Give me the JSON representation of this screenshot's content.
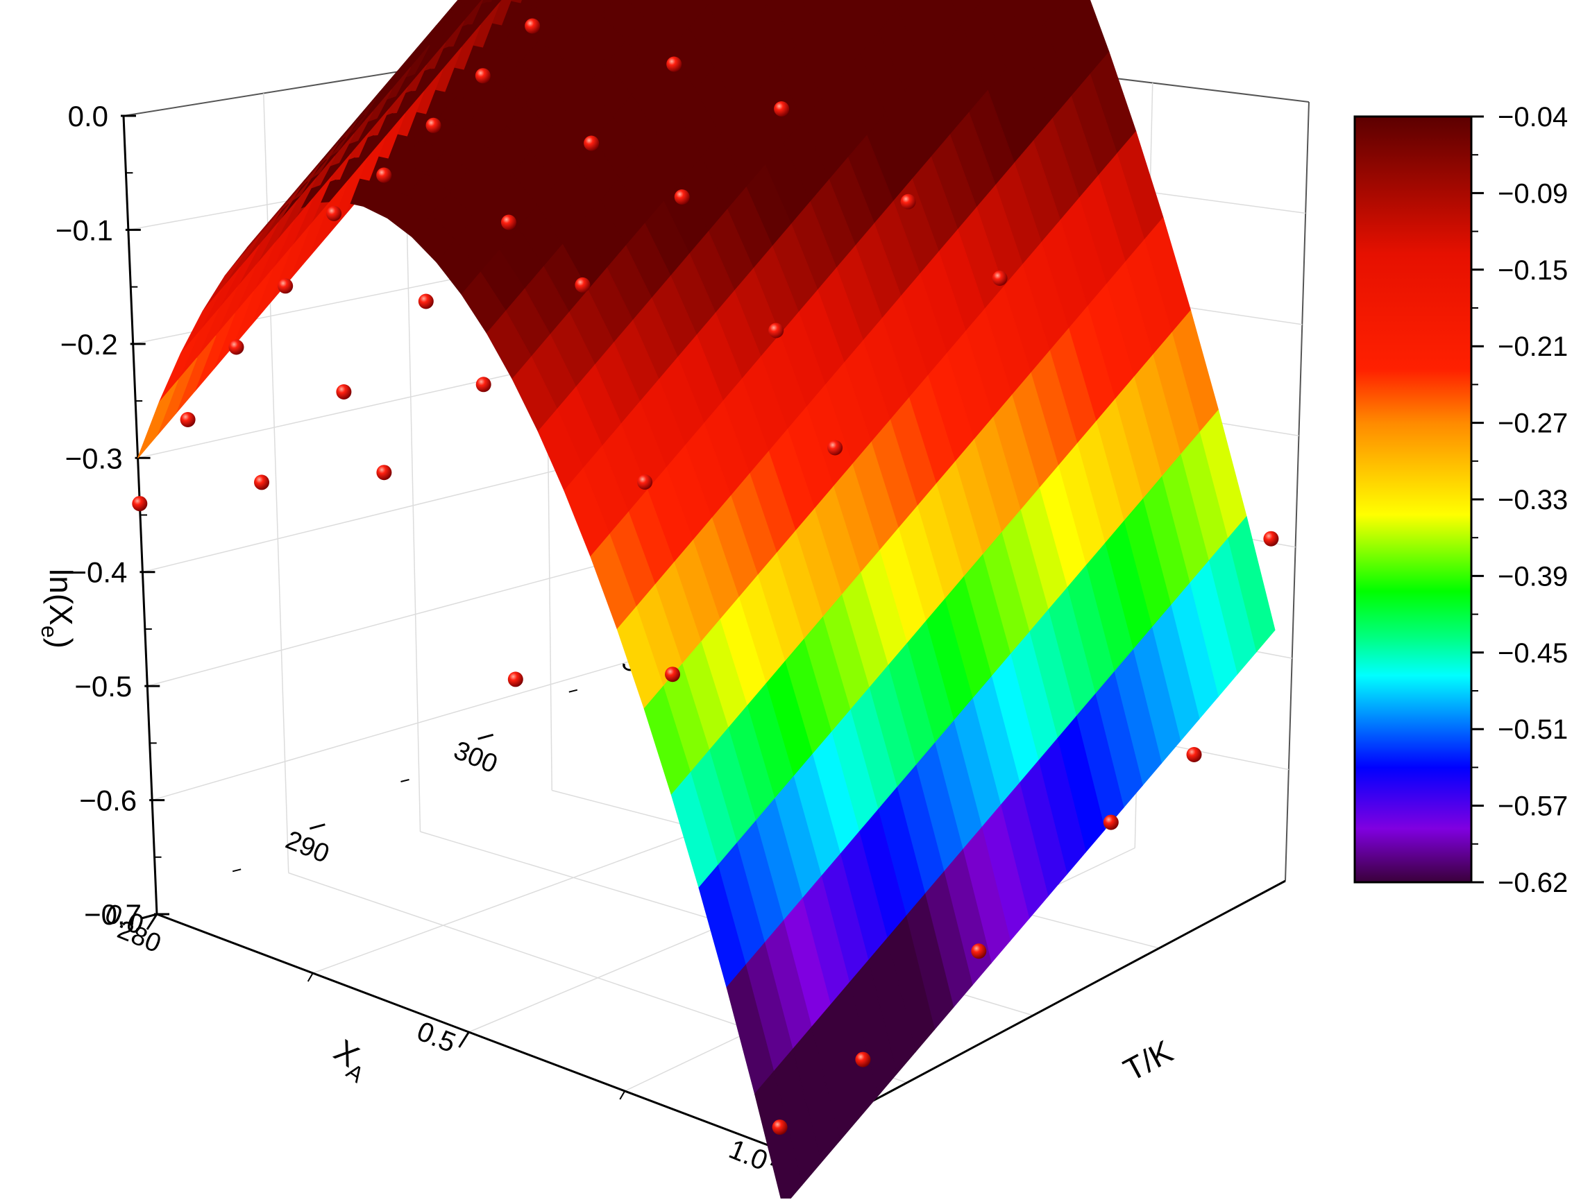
{
  "chart_data": {
    "type": "surface3d",
    "title": "",
    "zlabel": {
      "main": "ln(X",
      "sub": "e",
      "close": ")"
    },
    "xlabel": {
      "main": "X",
      "sub": "A"
    },
    "ylabel": "T/K",
    "zlim": [
      -0.7,
      0.0
    ],
    "z_ticks": [
      "0.0",
      "-0.1",
      "-0.2",
      "-0.3",
      "-0.4",
      "-0.5",
      "-0.6",
      "-0.7"
    ],
    "x_ticks": [
      "0.0",
      "0.5",
      "1.0"
    ],
    "y_ticks": [
      "280",
      "290",
      "300",
      "310"
    ],
    "colorbar": {
      "labels": [
        "-0.04",
        "-0.09",
        "-0.15",
        "-0.21",
        "-0.27",
        "-0.33",
        "-0.39",
        "-0.45",
        "-0.51",
        "-0.57",
        "-0.62"
      ],
      "range": [
        -0.62,
        -0.04
      ]
    },
    "grid": true,
    "points": [
      {
        "xA": 0.0,
        "T": 280,
        "z": -0.34
      },
      {
        "xA": 0.0,
        "T": 283,
        "z": -0.29
      },
      {
        "xA": 0.0,
        "T": 286,
        "z": -0.25
      },
      {
        "xA": 0.0,
        "T": 289,
        "z": -0.22
      },
      {
        "xA": 0.0,
        "T": 292,
        "z": -0.18
      },
      {
        "xA": 0.0,
        "T": 295,
        "z": -0.17
      },
      {
        "xA": 0.0,
        "T": 298,
        "z": -0.15
      },
      {
        "xA": 0.0,
        "T": 301,
        "z": -0.13
      },
      {
        "xA": 0.0,
        "T": 304,
        "z": -0.11
      },
      {
        "xA": 0.0,
        "T": 307,
        "z": -0.09
      },
      {
        "xA": 0.0,
        "T": 310,
        "z": -0.07
      },
      {
        "xA": 0.2,
        "T": 280,
        "z": -0.28
      },
      {
        "xA": 0.2,
        "T": 285,
        "z": -0.24
      },
      {
        "xA": 0.2,
        "T": 290,
        "z": -0.2
      },
      {
        "xA": 0.2,
        "T": 295,
        "z": -0.17
      },
      {
        "xA": 0.2,
        "T": 300,
        "z": -0.14
      },
      {
        "xA": 0.2,
        "T": 305,
        "z": -0.11
      },
      {
        "xA": 0.4,
        "T": 280,
        "z": -0.23
      },
      {
        "xA": 0.4,
        "T": 286,
        "z": -0.2
      },
      {
        "xA": 0.4,
        "T": 292,
        "z": -0.16
      },
      {
        "xA": 0.4,
        "T": 298,
        "z": -0.13
      },
      {
        "xA": 0.4,
        "T": 304,
        "z": -0.1
      },
      {
        "xA": 0.6,
        "T": 280,
        "z": -0.37
      },
      {
        "xA": 0.6,
        "T": 288,
        "z": -0.26
      },
      {
        "xA": 0.6,
        "T": 296,
        "z": -0.19
      },
      {
        "xA": 0.6,
        "T": 304,
        "z": -0.14
      },
      {
        "xA": 0.8,
        "T": 282,
        "z": -0.34
      },
      {
        "xA": 0.8,
        "T": 292,
        "z": -0.22
      },
      {
        "xA": 0.8,
        "T": 302,
        "z": -0.15
      },
      {
        "xA": 1.0,
        "T": 280,
        "z": -0.68
      },
      {
        "xA": 1.0,
        "T": 285,
        "z": -0.66
      },
      {
        "xA": 1.0,
        "T": 292,
        "z": -0.62
      },
      {
        "xA": 1.0,
        "T": 300,
        "z": -0.57
      },
      {
        "xA": 1.0,
        "T": 305,
        "z": -0.55
      },
      {
        "xA": 1.0,
        "T": 310,
        "z": -0.4
      }
    ]
  }
}
